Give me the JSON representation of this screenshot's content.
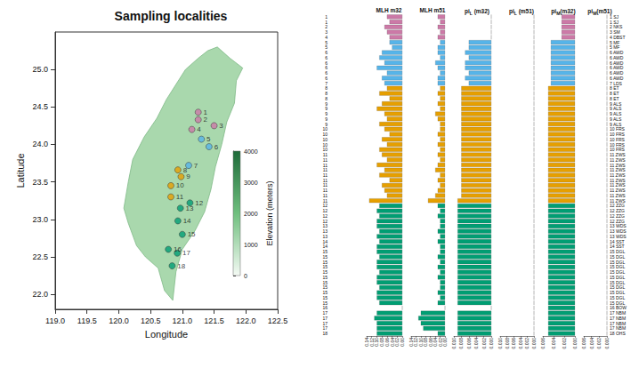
{
  "chart_data": [
    {
      "type": "scatter",
      "title": "Sampling localities",
      "x_label": "Longitude",
      "y_label": "Latitude",
      "xlim": [
        119.0,
        122.5
      ],
      "xticks": [
        {
          "value": 119.0,
          "label": "119.0"
        },
        {
          "value": 119.5,
          "label": "119.5"
        },
        {
          "value": 120.0,
          "label": "120.0"
        },
        {
          "value": 120.5,
          "label": "120.5"
        },
        {
          "value": 121.0,
          "label": "121.0"
        },
        {
          "value": 121.5,
          "label": "121.5"
        },
        {
          "value": 122.0,
          "label": "122.0"
        },
        {
          "value": 122.5,
          "label": "122.5"
        }
      ],
      "ylim": [
        21.8,
        25.5
      ],
      "yticks": [
        {
          "value": 22.0,
          "label": "22.0"
        },
        {
          "value": 22.5,
          "label": "22.5"
        },
        {
          "value": 23.0,
          "label": "23.0"
        },
        {
          "value": 23.5,
          "label": "23.5"
        },
        {
          "value": 24.0,
          "label": "24.0"
        },
        {
          "value": 24.5,
          "label": "24.5"
        },
        {
          "value": 25.0,
          "label": "25.0"
        }
      ],
      "points": {
        "labels": [
          "1",
          "2",
          "3",
          "4",
          "5",
          "6",
          "7",
          "8",
          "9",
          "10",
          "11",
          "12",
          "13",
          "14",
          "15",
          "16",
          "17",
          "18"
        ],
        "x": [
          121.25,
          121.25,
          121.5,
          121.15,
          121.3,
          121.42,
          121.1,
          120.93,
          120.98,
          120.82,
          120.82,
          121.12,
          120.97,
          120.93,
          121.0,
          120.78,
          120.92,
          120.84
        ],
        "y": [
          24.43,
          24.33,
          24.25,
          24.2,
          24.07,
          23.97,
          23.72,
          23.66,
          23.57,
          23.45,
          23.3,
          23.22,
          23.15,
          22.98,
          22.8,
          22.6,
          22.55,
          22.38
        ]
      },
      "colors": [
        "#cc79a7",
        "#cc79a7",
        "#cc79a7",
        "#cc79a7",
        "#56b4e9",
        "#56b4e9",
        "#56b4e9",
        "#e69f00",
        "#e69f00",
        "#e69f00",
        "#e69f00",
        "#009e73",
        "#009e73",
        "#009e73",
        "#009e73",
        "#009e73",
        "#009e73",
        "#009e73"
      ],
      "island_outline": {
        "x": [
          121.55,
          121.75,
          121.95,
          121.85,
          121.82,
          121.7,
          121.62,
          121.52,
          121.45,
          121.35,
          121.2,
          121.0,
          120.9,
          120.85,
          120.72,
          120.62,
          120.42,
          120.28,
          120.15,
          120.08,
          120.15,
          120.22,
          120.4,
          120.6,
          120.75,
          120.9,
          121.05,
          121.25,
          121.4
        ],
        "y": [
          25.3,
          25.15,
          25.02,
          24.85,
          24.55,
          24.3,
          24.0,
          23.7,
          23.4,
          23.1,
          22.85,
          22.6,
          22.3,
          21.92,
          22.05,
          22.35,
          22.5,
          22.65,
          22.95,
          23.15,
          23.5,
          23.8,
          24.1,
          24.35,
          24.6,
          24.8,
          25.0,
          25.15,
          25.25
        ]
      },
      "colorbar": {
        "label": "Elevation (meters)",
        "range": [
          0,
          4000
        ],
        "ticks": [
          0,
          1000,
          2000,
          3000,
          4000
        ]
      }
    },
    {
      "type": "bar",
      "orientation": "horizontal",
      "categories": [
        "1 SJ",
        "1 SJ",
        "2 NKS",
        "3 SM",
        "4 DBST",
        "5 MF",
        "5 MF",
        "6 AWD",
        "6 AWD",
        "6 AWD",
        "6 AWD",
        "6 AWD",
        "6 AWD",
        "7 LDS",
        "8 ET",
        "8 ET",
        "8 ET",
        "9 ALS",
        "9 ALS",
        "9 ALS",
        "9 ALS",
        "9 ALS",
        "10 FRS",
        "10 FRS",
        "10 FRS",
        "10 FRS",
        "10 FRS",
        "11 ZWS",
        "11 ZWS",
        "11 ZWS",
        "11 ZWS",
        "11 ZWS",
        "11 ZWS",
        "11 ZWS",
        "11 ZWS",
        "11 ZWS",
        "11 ZWS",
        "12 ZZG",
        "12 ZZG",
        "12 ZZG",
        "12 ZZG",
        "13 WDS",
        "13 WDS",
        "13 WDS",
        "14 SST",
        "14 SST",
        "15 DGL",
        "15 DGL",
        "15 DGL",
        "15 DGL",
        "15 DGL",
        "15 DGL",
        "15 DGL",
        "15 DGL",
        "15 DGL",
        "15 DGL",
        "15 DGL",
        "16 BOW",
        "17 NBM",
        "17 NBM",
        "17 NBM",
        "17 NBM",
        "18 OHS"
      ],
      "colors": [
        "#cc79a7",
        "#cc79a7",
        "#cc79a7",
        "#cc79a7",
        "#56b4e9",
        "#56b4e9",
        "#56b4e9",
        "#e69f00",
        "#e69f00",
        "#e69f00",
        "#e69f00",
        "#009e73",
        "#009e73",
        "#009e73",
        "#009e73",
        "#009e73",
        "#009e73",
        "#009e73"
      ],
      "panels": [
        {
          "title": {
            "text": "MLH m32"
          },
          "xlim": [
            0,
            0.14
          ],
          "xticks": [
            {
              "value": 0,
              "label": "0.00"
            },
            {
              "value": 0.02,
              "label": "0.02"
            },
            {
              "value": 0.04,
              "label": "0.04"
            },
            {
              "value": 0.06,
              "label": "0.06"
            },
            {
              "value": 0.08,
              "label": "0.08"
            },
            {
              "value": 0.1,
              "label": "0.10"
            },
            {
              "value": 0.12,
              "label": "0.12"
            },
            {
              "value": 0.14,
              "label": "0.14"
            }
          ],
          "values": [
            0.06,
            0.05,
            0.07,
            0.06,
            0.05,
            0.05,
            0.04,
            0.08,
            0.09,
            0.07,
            0.1,
            0.06,
            0.08,
            0.07,
            0.06,
            0.09,
            0.05,
            0.08,
            0.1,
            0.07,
            0.06,
            0.09,
            0.07,
            0.05,
            0.08,
            0.06,
            0.09,
            0.08,
            0.06,
            0.1,
            0.07,
            0.09,
            0.05,
            0.08,
            0.07,
            0.06,
            0.13,
            0.09,
            0.1,
            0.09,
            0.1,
            0.1,
            0.09,
            0.1,
            0.09,
            0.1,
            0.1,
            0.09,
            0.1,
            0.1,
            0.09,
            0.1,
            0.1,
            0.09,
            0.1,
            0.1,
            0.09,
            0,
            0.1,
            0.11,
            0.1,
            0.1,
            0.1
          ]
        },
        {
          "title": {
            "text": "MLH m51"
          },
          "xlim": [
            0,
            0.14
          ],
          "xticks": [
            {
              "value": 0,
              "label": "0.00"
            },
            {
              "value": 0.02,
              "label": "0.02"
            },
            {
              "value": 0.04,
              "label": "0.04"
            },
            {
              "value": 0.06,
              "label": "0.06"
            },
            {
              "value": 0.08,
              "label": "0.08"
            },
            {
              "value": 0.1,
              "label": "0.10"
            },
            {
              "value": 0.12,
              "label": "0.12"
            },
            {
              "value": 0.14,
              "label": "0.14"
            }
          ],
          "values": [
            0.03,
            0.02,
            0.03,
            0.02,
            0.03,
            0.02,
            0.03,
            0.03,
            0.02,
            0.04,
            0.03,
            0.02,
            0.03,
            0.03,
            0.02,
            0.03,
            0.02,
            0.03,
            0.02,
            0.04,
            0.03,
            0.02,
            0.02,
            0.03,
            0.02,
            0.03,
            0.02,
            0.03,
            0.02,
            0.03,
            0.04,
            0.02,
            0.03,
            0.02,
            0.03,
            0.04,
            0.07,
            0.03,
            0.02,
            0.03,
            0.02,
            0.02,
            0.03,
            0.02,
            0.03,
            0.02,
            0.02,
            0.03,
            0.02,
            0.03,
            0.02,
            0.03,
            0.02,
            0.02,
            0.03,
            0.02,
            0.03,
            0,
            0.1,
            0.11,
            0.1,
            0.09,
            0.03
          ]
        },
        {
          "title": {
            "text": "pi",
            "sub": "L",
            "suffix": " (m32)"
          },
          "xlim": [
            0,
            0.01
          ],
          "xticks": [
            {
              "value": 0,
              "label": "0.000"
            },
            {
              "value": 0.002,
              "label": "0.002"
            },
            {
              "value": 0.004,
              "label": "0.004"
            },
            {
              "value": 0.006,
              "label": "0.006"
            },
            {
              "value": 0.008,
              "label": "0.008"
            },
            {
              "value": 0.01,
              "label": "0.010"
            }
          ],
          "values": [
            0,
            0,
            0,
            0,
            0,
            0.006,
            0.006,
            0.007,
            0.006,
            0.007,
            0.007,
            0.006,
            0.007,
            0.006,
            0.008,
            0.008,
            0.008,
            0.008,
            0.008,
            0.008,
            0.008,
            0.008,
            0.008,
            0.008,
            0.008,
            0.008,
            0.008,
            0.008,
            0.008,
            0.008,
            0.008,
            0.008,
            0.008,
            0.008,
            0.008,
            0.008,
            0.009,
            0.009,
            0.009,
            0.009,
            0.009,
            0.009,
            0.009,
            0.009,
            0.009,
            0.009,
            0.009,
            0.009,
            0.009,
            0.009,
            0.009,
            0.009,
            0.009,
            0.009,
            0.009,
            0.009,
            0.009,
            0,
            0.009,
            0.009,
            0.009,
            0.009,
            0.009
          ]
        },
        {
          "title": {
            "text": "pi",
            "sub": "L",
            "suffix": " (m51)"
          },
          "xlim": [
            0,
            0.01
          ],
          "xticks": [
            {
              "value": 0,
              "label": "0.000"
            },
            {
              "value": 0.002,
              "label": "0.002"
            },
            {
              "value": 0.004,
              "label": "0.004"
            },
            {
              "value": 0.006,
              "label": "0.006"
            },
            {
              "value": 0.008,
              "label": "0.008"
            },
            {
              "value": 0.01,
              "label": "0.010"
            }
          ],
          "values": [
            0,
            0,
            0,
            0,
            0,
            0,
            0,
            0,
            0,
            0,
            0,
            0,
            0,
            0,
            0,
            0,
            0,
            0,
            0,
            0,
            0,
            0,
            0,
            0,
            0,
            0,
            0,
            0,
            0,
            0,
            0,
            0,
            0,
            0,
            0,
            0,
            0,
            0,
            0,
            0,
            0,
            0,
            0,
            0,
            0,
            0,
            0,
            0,
            0,
            0,
            0,
            0,
            0,
            0,
            0,
            0,
            0,
            0,
            0,
            0,
            0,
            0,
            0
          ]
        },
        {
          "title": {
            "text": "pi",
            "sub": "M",
            "suffix": "(m32)"
          },
          "xlim": [
            0,
            0.006
          ],
          "xticks": [
            {
              "value": 0,
              "label": "0.000"
            },
            {
              "value": 0.002,
              "label": "0.002"
            },
            {
              "value": 0.004,
              "label": "0.004"
            },
            {
              "value": 0.006,
              "label": "0.006"
            }
          ],
          "values": [
            0.0025,
            0.0025,
            0.0025,
            0.0025,
            0.0025,
            0.0045,
            0.0045,
            0.0045,
            0.0045,
            0.0045,
            0.0045,
            0.0045,
            0.0045,
            0.0045,
            0.005,
            0.005,
            0.005,
            0.005,
            0.005,
            0.005,
            0.005,
            0.005,
            0.005,
            0.005,
            0.005,
            0.005,
            0.005,
            0.005,
            0.005,
            0.005,
            0.005,
            0.005,
            0.005,
            0.005,
            0.005,
            0.005,
            0.005,
            0.005,
            0.005,
            0.005,
            0.005,
            0.005,
            0.005,
            0.005,
            0.005,
            0.005,
            0.005,
            0.005,
            0.005,
            0.005,
            0.005,
            0.005,
            0.005,
            0.005,
            0.005,
            0.005,
            0.005,
            0.005,
            0.005,
            0.005,
            0.005,
            0.005,
            0.005
          ]
        },
        {
          "title": {
            "text": "pi",
            "sub": "M",
            "suffix": "(m51)"
          },
          "xlim": [
            0,
            0.006
          ],
          "xticks": [
            {
              "value": 0,
              "label": "0.000"
            },
            {
              "value": 0.002,
              "label": "0.002"
            },
            {
              "value": 0.004,
              "label": "0.004"
            },
            {
              "value": 0.006,
              "label": "0.006"
            }
          ],
          "values": [
            0,
            0,
            0,
            0,
            0,
            0,
            0,
            0,
            0,
            0,
            0,
            0,
            0,
            0,
            0,
            0,
            0,
            0,
            0,
            0,
            0,
            0,
            0,
            0,
            0,
            0,
            0,
            0,
            0,
            0,
            0,
            0,
            0,
            0,
            0,
            0,
            0,
            0,
            0,
            0,
            0,
            0,
            0,
            0,
            0,
            0,
            0,
            0,
            0,
            0,
            0,
            0,
            0,
            0,
            0,
            0,
            0,
            0,
            0,
            0,
            0,
            0,
            0
          ]
        }
      ]
    }
  ]
}
